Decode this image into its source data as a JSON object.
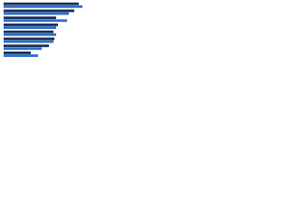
{
  "chart_data": {
    "type": "hbar",
    "categories": [
      null,
      null,
      null,
      null,
      null,
      null,
      null,
      null
    ],
    "series": [
      {
        "color": "#1b2f55",
        "values": [
          83,
          78,
          58,
          60,
          55,
          56,
          50,
          30
        ]
      },
      {
        "color": "#2e6fc9",
        "values": [
          87,
          72,
          70,
          58,
          58,
          55,
          42,
          38
        ]
      }
    ],
    "xlim": [
      0,
      92
    ]
  }
}
